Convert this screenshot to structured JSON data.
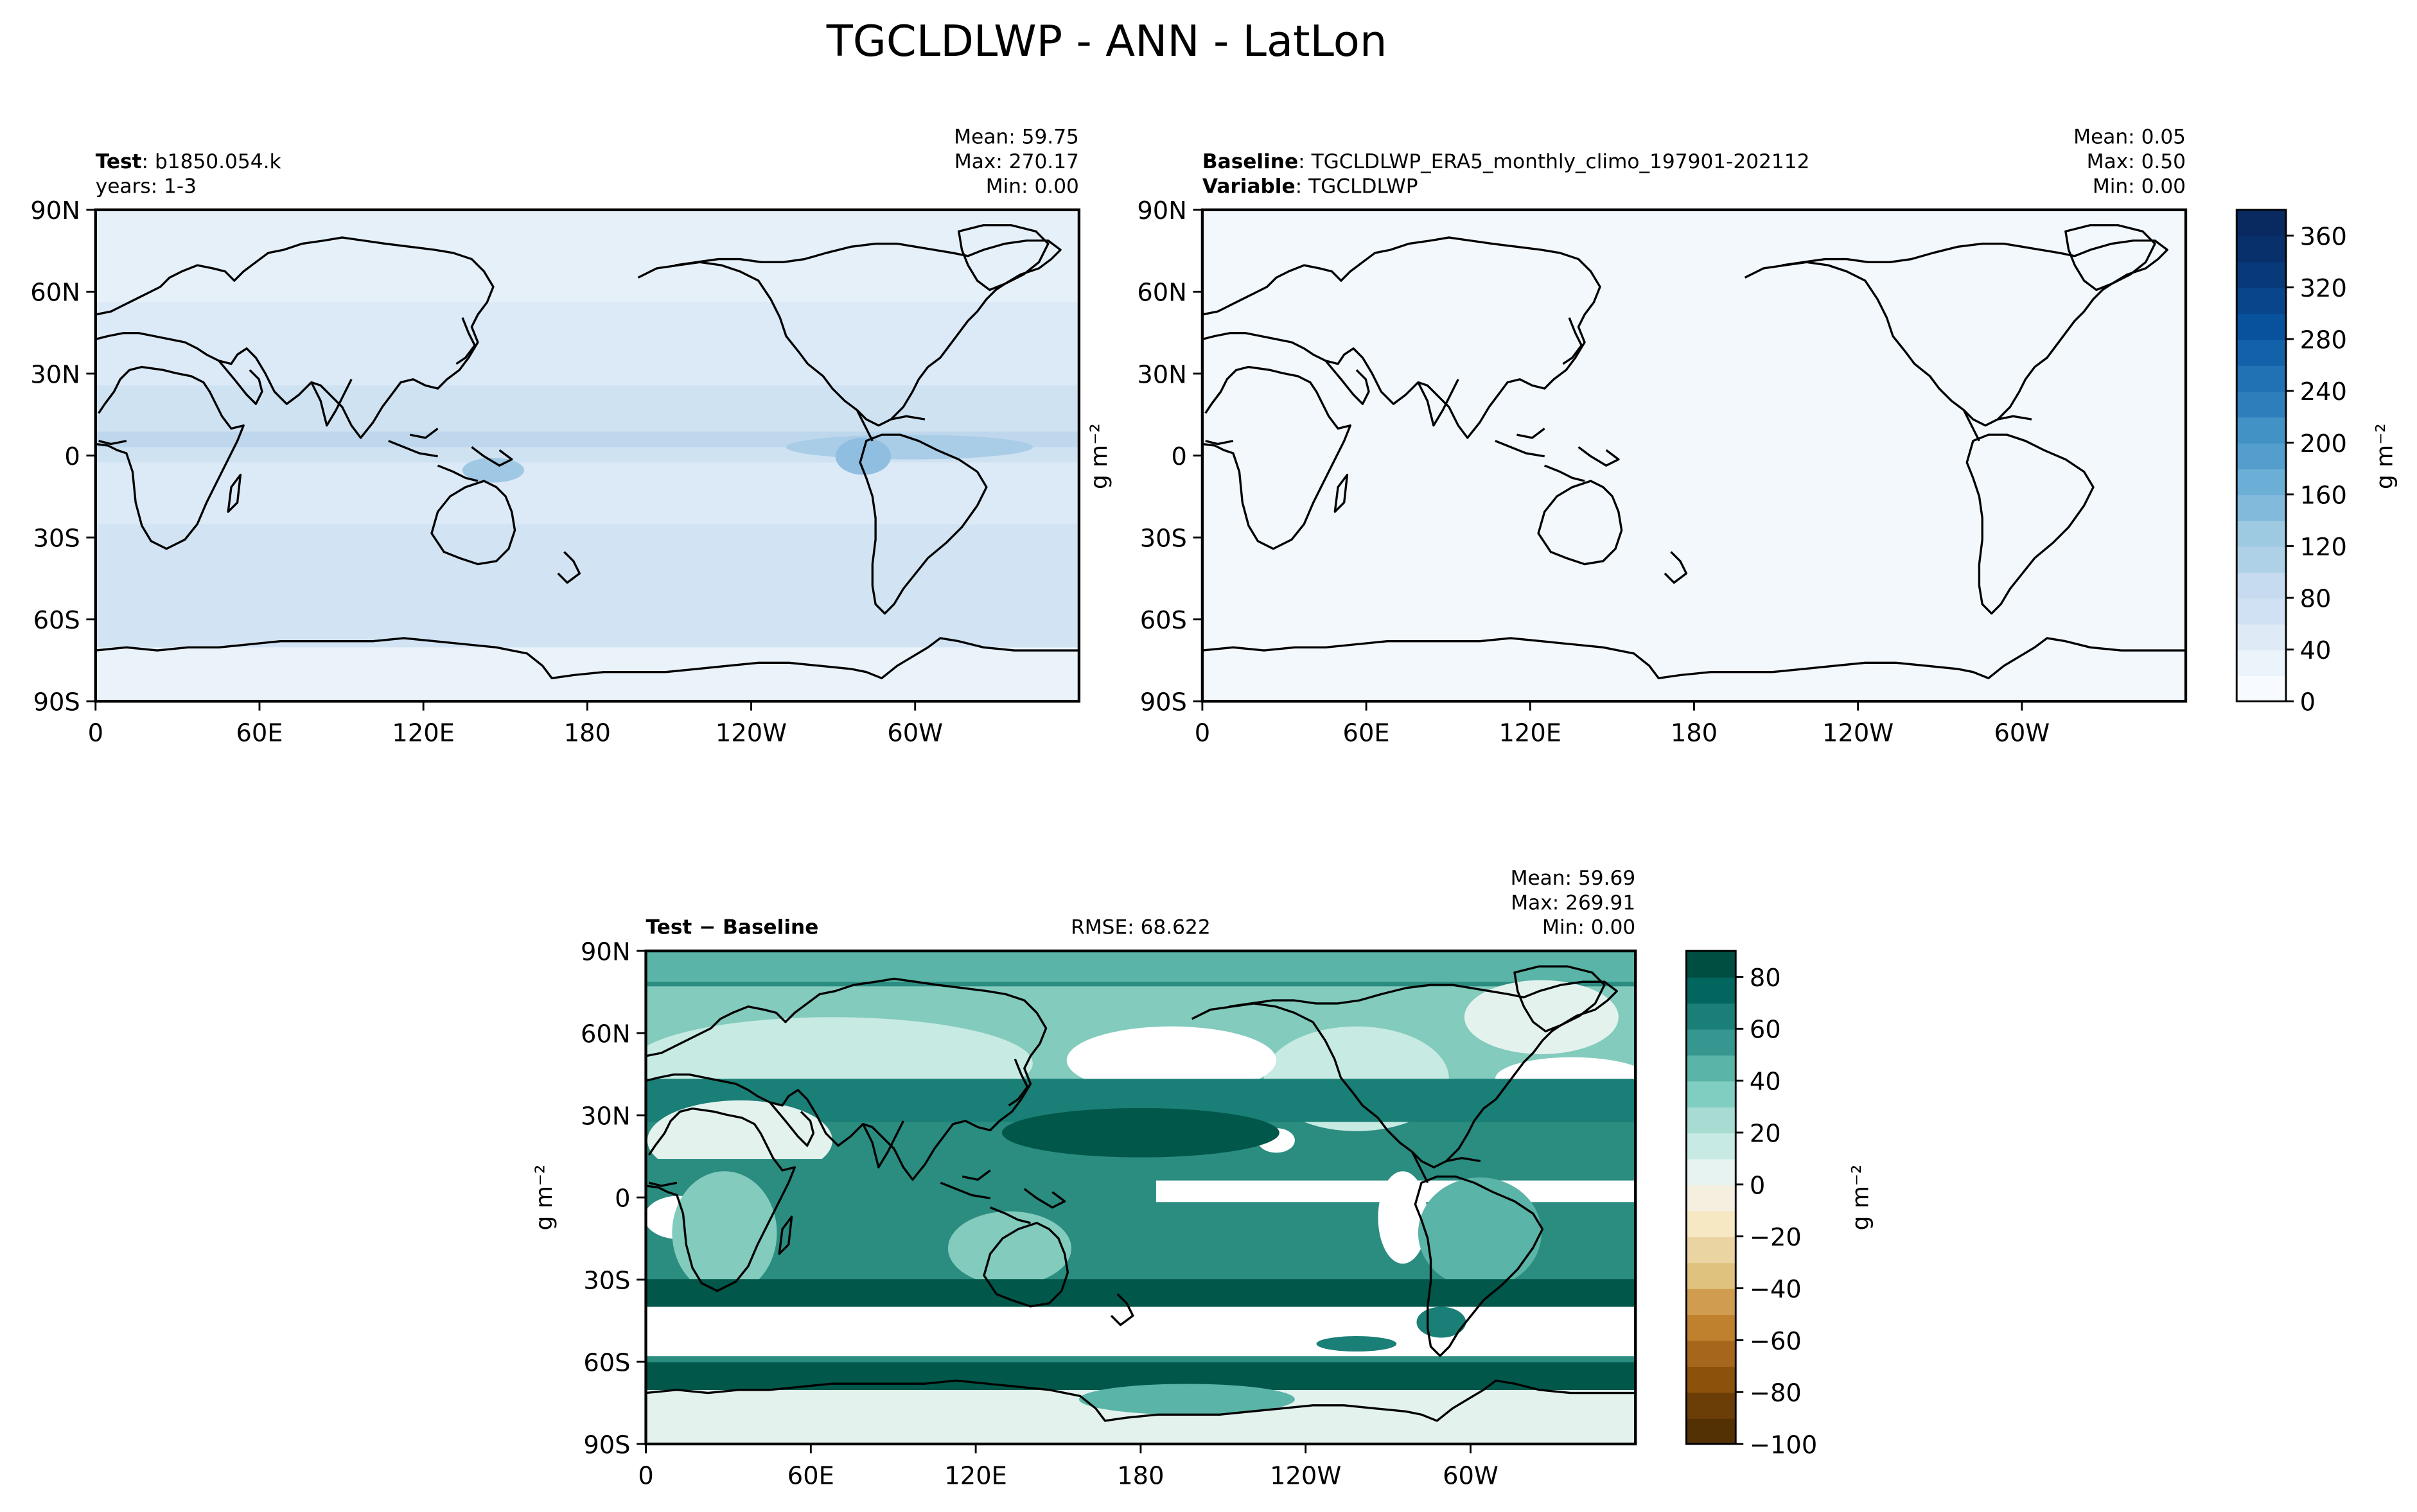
{
  "figure": {
    "title": "TGCLDLWP - ANN - LatLon"
  },
  "panels": {
    "test": {
      "case_label": "Test",
      "case_value": "b1850.054.k",
      "years": "years: 1-3",
      "mean": "Mean: 59.75",
      "max": "Max: 270.17",
      "min": "Min:  0.00"
    },
    "baseline": {
      "case_label": "Baseline",
      "case_value": "TGCLDLWP_ERA5_monthly_climo_197901-202112",
      "variable_label": "Variable",
      "variable_value": "TGCLDLWP",
      "mean": "Mean:  0.05",
      "max": "Max:  0.50",
      "min": "Min:  0.00"
    },
    "diff": {
      "label": "Test − Baseline",
      "rmse": "RMSE: 68.622",
      "mean": "Mean: 59.69",
      "max": "Max: 269.91",
      "min": "Min:  0.00"
    }
  },
  "colors": {
    "ocean_blue": "#c9dff0",
    "pale_blue": "#dce9f6",
    "white_blue": "#f3f8fc",
    "teal_dark": "#00574a",
    "teal_mid": "#2b8c80",
    "teal_light": "#82cbbd",
    "teal_pale": "#c7eae2",
    "teal_faint": "#e4f2ee"
  },
  "chart_data": [
    {
      "type": "heatmap",
      "panel": "test",
      "x_ticks": [
        "0",
        "60E",
        "120E",
        "180",
        "120W",
        "60W"
      ],
      "y_ticks": [
        "90N",
        "60N",
        "30N",
        "0",
        "30S",
        "60S",
        "90S"
      ],
      "xlim": [
        0,
        360
      ],
      "ylim": [
        -90,
        90
      ],
      "colorbar": "shared-right",
      "stats": {
        "mean": 59.75,
        "max": 270.17,
        "min": 0.0
      }
    },
    {
      "type": "heatmap",
      "panel": "baseline",
      "x_ticks": [
        "0",
        "60E",
        "120E",
        "180",
        "120W",
        "60W"
      ],
      "y_ticks": [
        "90N",
        "60N",
        "30N",
        "0",
        "30S",
        "60S",
        "90S"
      ],
      "xlim": [
        0,
        360
      ],
      "ylim": [
        -90,
        90
      ],
      "ylabel": "g m⁻²",
      "stats": {
        "mean": 0.05,
        "max": 0.5,
        "min": 0.0
      }
    },
    {
      "type": "heatmap",
      "panel": "diff",
      "x_ticks": [
        "0",
        "60E",
        "120E",
        "180",
        "120W",
        "60W"
      ],
      "y_ticks": [
        "90N",
        "60N",
        "30N",
        "0",
        "30S",
        "60S",
        "90S"
      ],
      "xlim": [
        0,
        360
      ],
      "ylim": [
        -90,
        90
      ],
      "ylabel": "g m⁻²",
      "stats": {
        "mean": 59.69,
        "max": 269.91,
        "min": 0.0,
        "rmse": 68.622
      }
    }
  ],
  "colorbars": {
    "main": {
      "label": "g m⁻²",
      "ticks": [
        "0",
        "40",
        "80",
        "120",
        "160",
        "200",
        "240",
        "280",
        "320",
        "360"
      ],
      "range": [
        0,
        380
      ],
      "colors": [
        "#f7fbff",
        "#ebf3fb",
        "#deebf7",
        "#cfe1f2",
        "#c6dbef",
        "#afd1e7",
        "#9ecae1",
        "#82badb",
        "#6baed6",
        "#539ecd",
        "#4292c6",
        "#2f7ebc",
        "#2171b5",
        "#1361a9",
        "#08519c",
        "#08458a",
        "#083a7a",
        "#08306b",
        "#082a60"
      ]
    },
    "diff": {
      "label": "g m⁻²",
      "ticks": [
        "80",
        "60",
        "40",
        "20",
        "0",
        "−20",
        "−40",
        "−60",
        "−80",
        "−100"
      ],
      "range": [
        -100,
        90
      ],
      "colors": [
        "#543005",
        "#6b3e08",
        "#8c510a",
        "#a6661b",
        "#bf812d",
        "#d09c4f",
        "#dfc27d",
        "#ead4a2",
        "#f6e8c3",
        "#f5efdf",
        "#e6f3f0",
        "#c7eae5",
        "#a8dcd3",
        "#80cdc1",
        "#5ab4a7",
        "#35978f",
        "#1a7f76",
        "#01665e",
        "#004d42"
      ]
    }
  }
}
